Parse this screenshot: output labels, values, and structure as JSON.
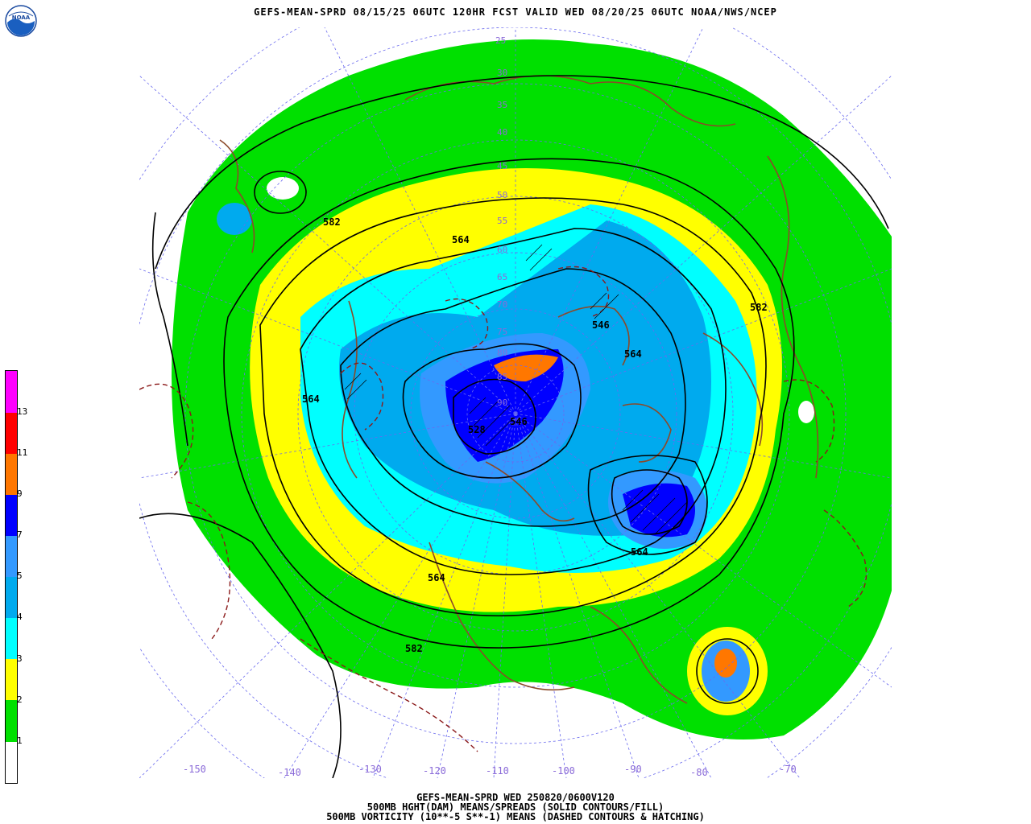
{
  "header": {
    "title": "GEFS-MEAN-SPRD 08/15/25 06UTC 120HR FCST VALID WED 08/20/25 06UTC NOAA/NWS/NCEP",
    "logo_text": "NOAA"
  },
  "colorbar": {
    "labels": [
      "1",
      "2",
      "3",
      "4",
      "5",
      "7",
      "9",
      "11",
      "13"
    ],
    "colors": [
      "#ffffff",
      "#00e000",
      "#ffff00",
      "#00ffff",
      "#00aaee",
      "#3399ff",
      "#0000ff",
      "#ff7700",
      "#ff0000",
      "#ff00ff"
    ]
  },
  "map": {
    "contour_labels": [
      "582",
      "564",
      "582",
      "546",
      "564",
      "564",
      "528",
      "546",
      "564",
      "564",
      "582",
      "564",
      "582"
    ],
    "lat_labels": [
      "25",
      "30",
      "35",
      "40",
      "45",
      "50",
      "55",
      "60",
      "65",
      "70",
      "75",
      "80",
      "85",
      "90"
    ],
    "lon_labels": [
      "-150",
      "-140",
      "-130",
      "-120",
      "-110",
      "-100",
      "-90",
      "-80",
      "-70"
    ]
  },
  "footer": {
    "line1": "GEFS-MEAN-SPRD WED 250820/0600V120",
    "line2": "500MB HGHT(DAM) MEANS/SPREADS (SOLID CONTOURS/FILL)",
    "line3": "500MB VORTICITY (10**-5 S**-1) MEANS (DASHED CONTOURS & HATCHING)"
  }
}
